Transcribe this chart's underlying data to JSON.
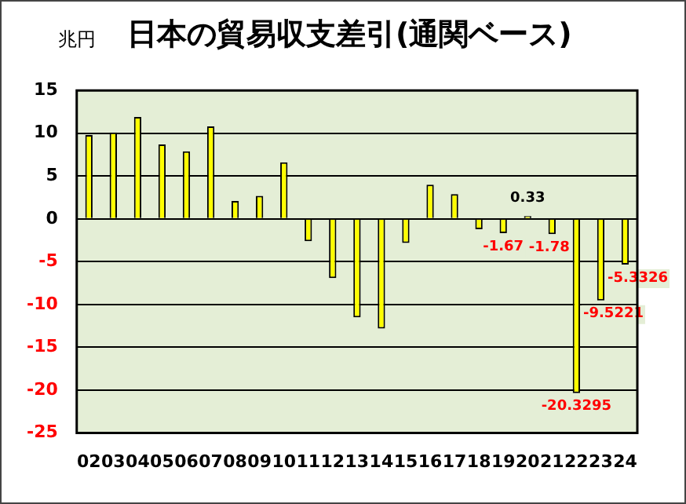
{
  "chart_data": {
    "type": "bar",
    "title": "日本の貿易収支差引(通関ベース)",
    "ylabel": "兆円",
    "categories": [
      "02",
      "03",
      "04",
      "05",
      "06",
      "07",
      "08",
      "09",
      "10",
      "11",
      "12",
      "13",
      "14",
      "15",
      "16",
      "17",
      "18",
      "19",
      "20",
      "21",
      "22",
      "23",
      "24"
    ],
    "values": [
      9.8,
      10.1,
      11.9,
      8.7,
      7.9,
      10.8,
      2.1,
      2.7,
      6.6,
      -2.6,
      -6.9,
      -11.5,
      -12.8,
      -2.8,
      4.0,
      2.9,
      -1.2,
      -1.67,
      0.33,
      -1.78,
      -20.3295,
      -9.5221,
      -5.3326
    ],
    "value_labels": [
      null,
      null,
      null,
      null,
      null,
      null,
      null,
      null,
      null,
      null,
      null,
      null,
      null,
      null,
      null,
      null,
      null,
      "-1.67",
      "0.33",
      "-1.78",
      "-20.3295",
      "-9.5221",
      "-5.3326"
    ],
    "color": "#ffff00",
    "ylim": [
      -25,
      15
    ],
    "yticks": [
      -25,
      -20,
      -15,
      -10,
      -5,
      0,
      5,
      10,
      15
    ],
    "grid": "y",
    "legend": false
  }
}
